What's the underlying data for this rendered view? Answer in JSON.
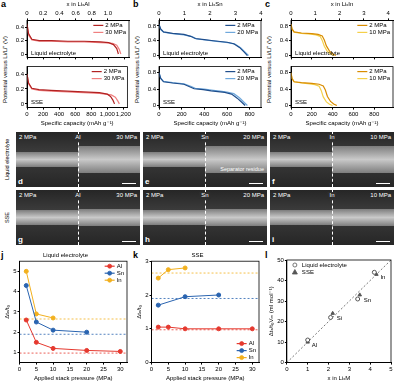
{
  "chart_data": [
    {
      "panel": "a",
      "type": "line",
      "x_label": "Specific capacity (mAh g⁻¹)",
      "xlim": [
        0,
        1250
      ],
      "xticks": [
        0,
        200,
        400,
        600,
        800,
        {
          "value": 1000,
          "label": "1,000"
        },
        {
          "value": 1200,
          "label": "1,200"
        }
      ],
      "x2_label": "x in LiₓAl",
      "x2lim": [
        0,
        1.26
      ],
      "x2ticks": [
        0,
        0.2,
        0.4,
        0.6,
        0.8,
        {
          "value": 1,
          "label": "1.0"
        }
      ],
      "y_label": "Potential versus Li/Li⁺ (V)",
      "subplots": [
        {
          "title": "Liquid electrolyte",
          "ylim": [
            -0.05,
            0.5
          ],
          "yticks": [
            0,
            0.2,
            0.4
          ],
          "legend": "upper right",
          "series": [
            {
              "name": "2 MPa",
              "color": "#b22222",
              "x": [
                0,
                20,
                60,
                150,
                300,
                500,
                700,
                900,
                1000,
                1060,
                1100,
                1120
              ],
              "values": [
                0.45,
                0.3,
                0.22,
                0.2,
                0.2,
                0.19,
                0.19,
                0.18,
                0.17,
                0.14,
                0.08,
                0
              ]
            },
            {
              "name": "30 MPa",
              "color": "#f08080",
              "x": [
                0,
                20,
                60,
                150,
                300,
                500,
                700,
                900,
                1050,
                1100,
                1130,
                1150
              ],
              "values": [
                0.42,
                0.28,
                0.21,
                0.19,
                0.19,
                0.18,
                0.18,
                0.17,
                0.16,
                0.13,
                0.07,
                0
              ]
            }
          ]
        },
        {
          "title": "SSE",
          "ylim": [
            -0.05,
            0.5
          ],
          "yticks": [
            0,
            0.2,
            0.4
          ],
          "legend": "upper right",
          "series": [
            {
              "name": "2 MPa",
              "color": "#b22222",
              "x": [
                0,
                20,
                60,
                150,
                300,
                500,
                700,
                900,
                1000,
                1040,
                1070,
                1090
              ],
              "values": [
                0.4,
                0.28,
                0.21,
                0.19,
                0.18,
                0.17,
                0.16,
                0.15,
                0.13,
                0.1,
                0.05,
                0
              ]
            },
            {
              "name": "30 MPa",
              "color": "#f08080",
              "x": [
                0,
                20,
                60,
                150,
                300,
                500,
                700,
                900,
                1050,
                1100,
                1130,
                1150
              ],
              "values": [
                0.4,
                0.27,
                0.2,
                0.18,
                0.17,
                0.16,
                0.15,
                0.14,
                0.12,
                0.09,
                0.04,
                0
              ]
            }
          ]
        }
      ]
    },
    {
      "panel": "b",
      "type": "line",
      "x_label": "Specific capacity (mAh g⁻¹)",
      "xlim": [
        0,
        900
      ],
      "xticks": [
        0,
        200,
        400,
        600,
        800
      ],
      "x2_label": "x in LiₓSn",
      "x2lim": [
        0,
        4
      ],
      "x2ticks": [
        0,
        1,
        2,
        3,
        4
      ],
      "y_label": "Potential versus Li/Li⁺ (V)",
      "subplots": [
        {
          "title": "Liquid electrolyte",
          "ylim": [
            -0.05,
            0.95
          ],
          "yticks": [
            0,
            0.4,
            0.8
          ],
          "legend": "upper right",
          "series": [
            {
              "name": "2 MPa",
              "color": "#1f4e8c",
              "x": [
                0,
                15,
                40,
                120,
                220,
                280,
                320,
                400,
                480,
                540,
                600,
                660,
                710,
                750,
                780
              ],
              "values": [
                0.85,
                0.72,
                0.64,
                0.6,
                0.57,
                0.52,
                0.46,
                0.43,
                0.4,
                0.38,
                0.36,
                0.32,
                0.22,
                0.1,
                0
              ]
            },
            {
              "name": "20 MPa",
              "color": "#6fa8dc",
              "x": [
                0,
                15,
                40,
                120,
                220,
                290,
                330,
                410,
                490,
                550,
                610,
                670,
                720,
                760,
                790
              ],
              "values": [
                0.83,
                0.7,
                0.63,
                0.59,
                0.56,
                0.51,
                0.45,
                0.42,
                0.39,
                0.37,
                0.35,
                0.31,
                0.21,
                0.09,
                0
              ]
            }
          ]
        },
        {
          "title": "SSE",
          "ylim": [
            -0.05,
            0.95
          ],
          "yticks": [
            0,
            0.4,
            0.8
          ],
          "legend": "upper right",
          "series": [
            {
              "name": "2 MPa",
              "color": "#1f4e8c",
              "x": [
                0,
                15,
                40,
                120,
                220,
                270,
                310,
                390,
                460,
                520,
                580,
                640,
                690,
                730,
                760
              ],
              "values": [
                0.8,
                0.66,
                0.58,
                0.55,
                0.52,
                0.46,
                0.41,
                0.39,
                0.36,
                0.34,
                0.32,
                0.28,
                0.18,
                0.08,
                0
              ]
            },
            {
              "name": "20 MPa",
              "color": "#6fa8dc",
              "x": [
                0,
                15,
                40,
                120,
                220,
                280,
                320,
                400,
                480,
                540,
                600,
                660,
                710,
                750,
                780
              ],
              "values": [
                0.8,
                0.67,
                0.59,
                0.56,
                0.53,
                0.47,
                0.42,
                0.4,
                0.37,
                0.35,
                0.33,
                0.29,
                0.19,
                0.08,
                0
              ]
            }
          ]
        }
      ]
    },
    {
      "panel": "c",
      "type": "line",
      "x_label": "Specific capacity (mAh g⁻¹)",
      "xlim": [
        0,
        980
      ],
      "xticks": [
        0,
        200,
        400,
        600,
        800
      ],
      "x2_label": "x in LiₓIn",
      "x2lim": [
        0,
        4.2
      ],
      "x2ticks": [
        0,
        1,
        2,
        3,
        4
      ],
      "y_label": "Potential versus Li/Li⁺ (V)",
      "subplots": [
        {
          "title": "Liquid electrolyte",
          "ylim": [
            -0.05,
            0.95
          ],
          "yticks": [
            0,
            0.4,
            0.8
          ],
          "legend": "upper right",
          "series": [
            {
              "name": "2 MPa",
              "color": "#d98c00",
              "x": [
                0,
                10,
                30,
                100,
                200,
                260,
                300,
                320,
                340,
                370,
                400,
                430
              ],
              "values": [
                0.85,
                0.72,
                0.64,
                0.61,
                0.59,
                0.57,
                0.53,
                0.42,
                0.26,
                0.12,
                0.05,
                0
              ]
            },
            {
              "name": "10 MPa",
              "color": "#f5d04a",
              "x": [
                0,
                10,
                30,
                100,
                190,
                240,
                280,
                300,
                320,
                350,
                380,
                410
              ],
              "values": [
                0.84,
                0.71,
                0.63,
                0.6,
                0.58,
                0.56,
                0.52,
                0.41,
                0.25,
                0.11,
                0.04,
                0
              ]
            }
          ]
        },
        {
          "title": "SSE",
          "ylim": [
            -0.05,
            0.95
          ],
          "yticks": [
            0,
            0.4,
            0.8
          ],
          "legend": "upper right",
          "series": [
            {
              "name": "2 MPa",
              "color": "#d98c00",
              "x": [
                0,
                10,
                30,
                100,
                200,
                270,
                310,
                330,
                350,
                380,
                410,
                440
              ],
              "values": [
                0.8,
                0.66,
                0.58,
                0.56,
                0.54,
                0.52,
                0.48,
                0.38,
                0.22,
                0.1,
                0.04,
                0
              ]
            },
            {
              "name": "10 MPa",
              "color": "#f5d04a",
              "x": [
                0,
                10,
                30,
                100,
                180,
                230,
                270,
                290,
                310,
                340,
                370,
                400
              ],
              "values": [
                0.8,
                0.66,
                0.58,
                0.55,
                0.53,
                0.51,
                0.47,
                0.37,
                0.21,
                0.09,
                0.03,
                0
              ]
            }
          ]
        }
      ]
    },
    {
      "panel": "j",
      "type": "line",
      "title": "Liquid electrolyte",
      "x_label": "Applied stack pressure (MPa)",
      "xlim": [
        0,
        32
      ],
      "xticks": [
        0,
        5,
        10,
        15,
        20,
        25,
        30
      ],
      "y_label": "Δtₑ/t₀",
      "ylim": [
        0.5,
        5.5
      ],
      "yticks": [
        1,
        2,
        3,
        4,
        5
      ],
      "legend": "upper right",
      "marker": "circle",
      "series": [
        {
          "name": "Al",
          "color": "#e5392f",
          "x": [
            2,
            5,
            10,
            20,
            30
          ],
          "values": [
            2.6,
            1.5,
            1.2,
            1.1,
            1.05
          ]
        },
        {
          "name": "Sn",
          "color": "#2a64b0",
          "x": [
            2,
            5,
            10,
            20
          ],
          "values": [
            4.3,
            2.5,
            2.1,
            2.0
          ]
        },
        {
          "name": "In",
          "color": "#f2b01e",
          "x": [
            2,
            5,
            10
          ],
          "values": [
            5.0,
            2.9,
            2.7
          ]
        }
      ],
      "reference_lines": [
        {
          "value": 0.97,
          "color": "#e5392f",
          "line_style": "dashed"
        },
        {
          "value": 1.9,
          "color": "#2a64b0",
          "line_style": "dashed"
        },
        {
          "value": 2.65,
          "color": "#f2b01e",
          "line_style": "dashed"
        }
      ]
    },
    {
      "panel": "k",
      "type": "line",
      "title": "SSE",
      "x_label": "Applied stack pressure (MPa)",
      "xlim": [
        0,
        32
      ],
      "xticks": [
        0,
        5,
        10,
        15,
        20,
        25,
        30
      ],
      "y_label": "Δtₑ/t₀",
      "ylim": [
        0,
        3
      ],
      "yticks": [
        0,
        1,
        2,
        3
      ],
      "legend": "lower right",
      "marker": "circle",
      "series": [
        {
          "name": "Al",
          "color": "#e5392f",
          "x": [
            2,
            5,
            10,
            20,
            30
          ],
          "values": [
            1.05,
            1.05,
            1.0,
            1.0,
            1.0
          ]
        },
        {
          "name": "Sn",
          "color": "#2a64b0",
          "x": [
            2,
            10,
            20
          ],
          "values": [
            1.7,
            1.95,
            2.0
          ]
        },
        {
          "name": "In",
          "color": "#f2b01e",
          "x": [
            2,
            5,
            10
          ],
          "values": [
            2.5,
            2.75,
            2.8
          ]
        }
      ],
      "reference_lines": [
        {
          "value": 0.97,
          "color": "#e5392f",
          "line_style": "dashed"
        },
        {
          "value": 1.9,
          "color": "#2a64b0",
          "line_style": "dashed"
        },
        {
          "value": 2.65,
          "color": "#f2b01e",
          "line_style": "dashed"
        }
      ]
    },
    {
      "panel": "l",
      "type": "scatter",
      "x_label": "x in LiₓM",
      "xlim": [
        0,
        5
      ],
      "xticks": [
        0,
        1,
        2,
        3,
        4,
        5
      ],
      "y_label": "Δtₑ/t₀Vₘ (ml mol⁻¹)",
      "ylim": [
        0,
        50
      ],
      "yticks": [
        0,
        10,
        20,
        30,
        40,
        50
      ],
      "legend": "upper left",
      "series": [
        {
          "name": "Liquid electrolyte",
          "color": "#555555",
          "marker": "open_circle",
          "x": [
            1.0,
            2.1,
            3.4,
            4.2
          ],
          "values": [
            11,
            22,
            31,
            44
          ]
        },
        {
          "name": "SSE",
          "color": "#555555",
          "marker": "triangle",
          "x": [
            1.0,
            2.2,
            3.5,
            4.3
          ],
          "values": [
            10,
            24,
            33,
            43
          ]
        }
      ],
      "reference_line": {
        "x": [
          0,
          5
        ],
        "values": [
          0,
          50
        ],
        "color": "#555555",
        "line_style": "dashed"
      },
      "annotations": [
        {
          "text": "Al",
          "x": 1.0,
          "y": 10
        },
        {
          "text": "Si",
          "x": 2.2,
          "y": 23
        },
        {
          "text": "Sn",
          "x": 3.5,
          "y": 32
        },
        {
          "text": "In",
          "x": 4.3,
          "y": 43
        }
      ]
    }
  ],
  "micrographs": {
    "rows": [
      "Liquid electrolyte",
      "SSE"
    ],
    "panels": [
      {
        "panel": "d",
        "left": "2 MPa",
        "center": "Al",
        "right": "30 MPa"
      },
      {
        "panel": "e",
        "left": "2 MPa",
        "center": "Sn",
        "right": "20 MPa",
        "annotation": "Separator residue"
      },
      {
        "panel": "f",
        "left": "2 MPa",
        "center": "In",
        "right": "10 MPa"
      },
      {
        "panel": "g",
        "left": "2 MPa",
        "center": "Al",
        "right": "30 MPa"
      },
      {
        "panel": "h",
        "left": "2 MPa",
        "center": "Sn",
        "right": "20 MPa"
      },
      {
        "panel": "i",
        "left": "2 MPa",
        "center": "In",
        "right": "10 MPa"
      }
    ]
  }
}
